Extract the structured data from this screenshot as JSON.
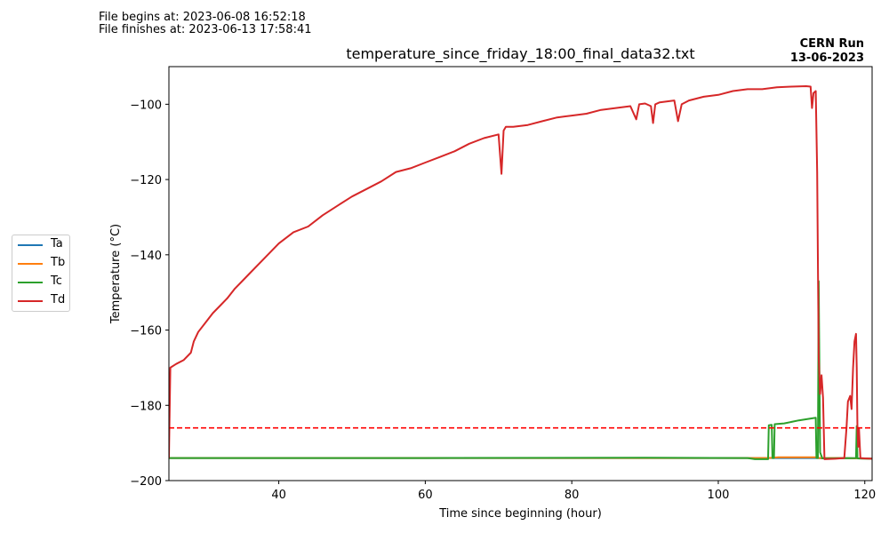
{
  "header": {
    "file_begins": "File begins at: 2023-06-08 16:52:18",
    "file_finishes": "File finishes at: 2023-06-13 17:58:41",
    "run_name": "CERN Run",
    "run_date": "13-06-2023"
  },
  "chart_data": {
    "type": "line",
    "title": "temperature_since_friday_18:00_final_data32.txt",
    "xlabel": "Time since beginning (hour)",
    "ylabel": "Temperature (°C)",
    "xlim": [
      25,
      121
    ],
    "ylim": [
      -200,
      -90
    ],
    "xticks": [
      40,
      60,
      80,
      100,
      120
    ],
    "yticks": [
      -200,
      -180,
      -160,
      -140,
      -120,
      -100
    ],
    "grid": false,
    "legend_position": "left, outside plot",
    "reference_line": {
      "y": -186,
      "style": "dashed",
      "color": "#ff0000"
    },
    "series": [
      {
        "name": "Ta",
        "color": "#1f77b4",
        "points": [
          [
            25,
            -194
          ],
          [
            60,
            -194
          ],
          [
            100,
            -194
          ],
          [
            107,
            -194
          ],
          [
            113.6,
            -194
          ],
          [
            114.2,
            -194.1
          ],
          [
            117,
            -194
          ],
          [
            119,
            -194.1
          ],
          [
            121,
            -194.2
          ]
        ]
      },
      {
        "name": "Tb",
        "color": "#ff7f0e",
        "points": [
          [
            25,
            -194
          ],
          [
            60,
            -194
          ],
          [
            100,
            -194
          ],
          [
            106.8,
            -194
          ],
          [
            107.5,
            -193.9
          ],
          [
            108.2,
            -193.8
          ],
          [
            110,
            -193.8
          ],
          [
            113.4,
            -193.8
          ],
          [
            113.6,
            -194
          ],
          [
            117,
            -194
          ],
          [
            121,
            -194.2
          ]
        ]
      },
      {
        "name": "Tc",
        "color": "#2ca02c",
        "points": [
          [
            25,
            -194
          ],
          [
            60,
            -194
          ],
          [
            90,
            -193.9
          ],
          [
            104,
            -194
          ],
          [
            105,
            -194.3
          ],
          [
            106.8,
            -194.3
          ],
          [
            106.9,
            -185.3
          ],
          [
            107.3,
            -185.2
          ],
          [
            107.4,
            -194
          ],
          [
            107.6,
            -194
          ],
          [
            107.7,
            -185
          ],
          [
            109,
            -184.8
          ],
          [
            111,
            -184
          ],
          [
            113.3,
            -183.3
          ],
          [
            113.4,
            -194
          ],
          [
            113.6,
            -194
          ],
          [
            113.7,
            -147
          ],
          [
            113.9,
            -192.5
          ],
          [
            114.2,
            -194.1
          ],
          [
            118.8,
            -194
          ],
          [
            118.9,
            -185.5
          ],
          [
            119,
            -194.1
          ],
          [
            121,
            -194.2
          ]
        ]
      },
      {
        "name": "Td",
        "color": "#d62728",
        "points": [
          [
            25,
            -194
          ],
          [
            25.2,
            -170
          ],
          [
            26,
            -169
          ],
          [
            27,
            -168
          ],
          [
            28,
            -166
          ],
          [
            28.4,
            -163
          ],
          [
            29,
            -160.5
          ],
          [
            30,
            -158
          ],
          [
            31,
            -155.5
          ],
          [
            32,
            -153.5
          ],
          [
            33,
            -151.5
          ],
          [
            34,
            -149
          ],
          [
            35,
            -147
          ],
          [
            36,
            -145
          ],
          [
            38,
            -141
          ],
          [
            40,
            -137
          ],
          [
            42,
            -134
          ],
          [
            44,
            -132.5
          ],
          [
            46,
            -129.5
          ],
          [
            48,
            -127
          ],
          [
            50,
            -124.5
          ],
          [
            52,
            -122.5
          ],
          [
            54,
            -120.5
          ],
          [
            56,
            -118
          ],
          [
            58,
            -117
          ],
          [
            60,
            -115.5
          ],
          [
            62,
            -114
          ],
          [
            64,
            -112.5
          ],
          [
            66,
            -110.5
          ],
          [
            68,
            -109
          ],
          [
            70,
            -108
          ],
          [
            70.4,
            -118.5
          ],
          [
            70.7,
            -107
          ],
          [
            71,
            -106
          ],
          [
            72,
            -106
          ],
          [
            74,
            -105.5
          ],
          [
            76,
            -104.5
          ],
          [
            78,
            -103.5
          ],
          [
            80,
            -103
          ],
          [
            82,
            -102.5
          ],
          [
            84,
            -101.5
          ],
          [
            86,
            -101
          ],
          [
            88,
            -100.5
          ],
          [
            88.8,
            -104
          ],
          [
            89.2,
            -100
          ],
          [
            90,
            -99.8
          ],
          [
            90.8,
            -100.5
          ],
          [
            91.1,
            -105
          ],
          [
            91.4,
            -100
          ],
          [
            92,
            -99.5
          ],
          [
            94,
            -99
          ],
          [
            94.5,
            -104.5
          ],
          [
            95,
            -100
          ],
          [
            96,
            -99
          ],
          [
            98,
            -98
          ],
          [
            100,
            -97.5
          ],
          [
            102,
            -96.5
          ],
          [
            104,
            -96
          ],
          [
            106,
            -96
          ],
          [
            108,
            -95.5
          ],
          [
            110,
            -95.3
          ],
          [
            112,
            -95.2
          ],
          [
            112.6,
            -95.3
          ],
          [
            112.8,
            -101
          ],
          [
            113,
            -97
          ],
          [
            113.3,
            -96.5
          ],
          [
            113.5,
            -118
          ],
          [
            113.7,
            -167
          ],
          [
            113.9,
            -177
          ],
          [
            114.1,
            -172
          ],
          [
            114.3,
            -178
          ],
          [
            114.5,
            -194.3
          ],
          [
            116,
            -194.2
          ],
          [
            117.2,
            -194
          ],
          [
            117.5,
            -186
          ],
          [
            117.7,
            -179
          ],
          [
            118,
            -177.5
          ],
          [
            118.2,
            -181
          ],
          [
            118.4,
            -170
          ],
          [
            118.6,
            -163
          ],
          [
            118.8,
            -161
          ],
          [
            118.9,
            -170
          ],
          [
            119,
            -186
          ],
          [
            119.1,
            -191
          ],
          [
            119.2,
            -186
          ],
          [
            119.4,
            -194
          ],
          [
            120,
            -194.1
          ],
          [
            121,
            -194.2
          ]
        ]
      }
    ]
  }
}
